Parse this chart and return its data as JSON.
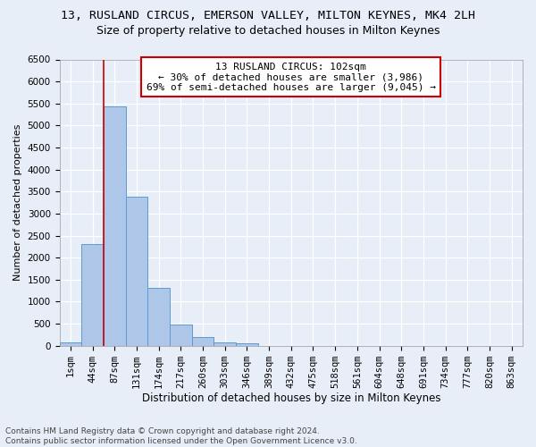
{
  "title": "13, RUSLAND CIRCUS, EMERSON VALLEY, MILTON KEYNES, MK4 2LH",
  "subtitle": "Size of property relative to detached houses in Milton Keynes",
  "xlabel": "Distribution of detached houses by size in Milton Keynes",
  "ylabel": "Number of detached properties",
  "bar_labels": [
    "1sqm",
    "44sqm",
    "87sqm",
    "131sqm",
    "174sqm",
    "217sqm",
    "260sqm",
    "303sqm",
    "346sqm",
    "389sqm",
    "432sqm",
    "475sqm",
    "518sqm",
    "561sqm",
    "604sqm",
    "648sqm",
    "691sqm",
    "734sqm",
    "777sqm",
    "820sqm",
    "863sqm"
  ],
  "bar_values": [
    75,
    2300,
    5430,
    3380,
    1310,
    480,
    190,
    80,
    50,
    0,
    0,
    0,
    0,
    0,
    0,
    0,
    0,
    0,
    0,
    0,
    0
  ],
  "bar_color": "#aec6e8",
  "bar_edge_color": "#5b9bd5",
  "vline_x_idx": 2,
  "vline_color": "#cc0000",
  "ylim_max": 6500,
  "ytick_step": 500,
  "annotation_line1": "13 RUSLAND CIRCUS: 102sqm",
  "annotation_line2": "← 30% of detached houses are smaller (3,986)",
  "annotation_line3": "69% of semi-detached houses are larger (9,045) →",
  "annotation_box_facecolor": "#ffffff",
  "annotation_box_edgecolor": "#cc0000",
  "footnote": "Contains HM Land Registry data © Crown copyright and database right 2024.\nContains public sector information licensed under the Open Government Licence v3.0.",
  "bg_color": "#e8eef8",
  "grid_color": "#ffffff",
  "title_fontsize": 9.5,
  "subtitle_fontsize": 9,
  "xlabel_fontsize": 8.5,
  "ylabel_fontsize": 8,
  "tick_fontsize": 7.5,
  "annot_fontsize": 8,
  "footnote_fontsize": 6.5
}
